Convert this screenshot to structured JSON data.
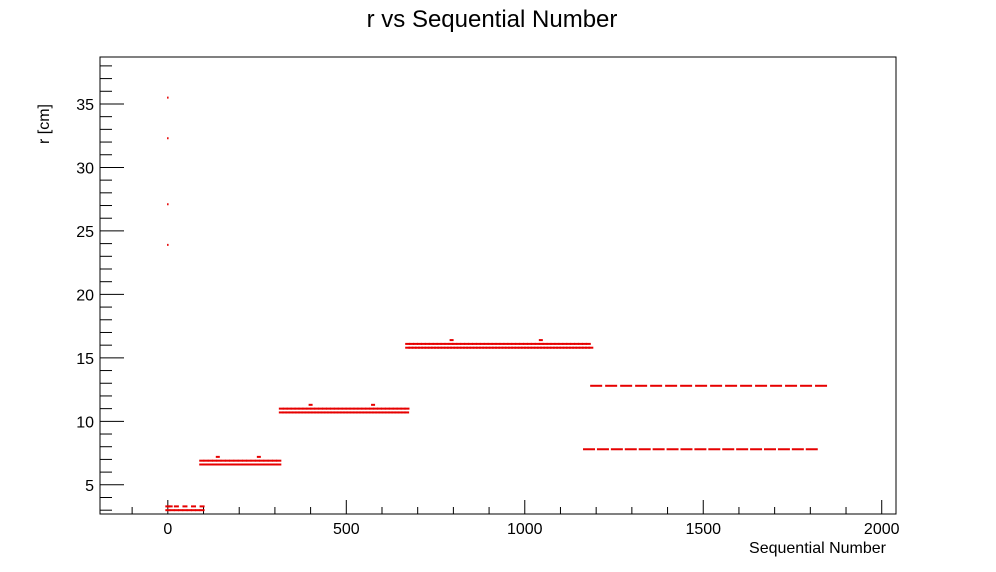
{
  "chart_data": {
    "type": "scatter",
    "title": "r vs Sequential Number",
    "xlabel": "Sequential Number",
    "ylabel": "r [cm]",
    "xlim": [
      -190,
      2040
    ],
    "ylim": [
      2.7,
      38.7
    ],
    "xticks": [
      0,
      500,
      1000,
      1500,
      2000
    ],
    "yticks": [
      5,
      10,
      15,
      20,
      25,
      30,
      35
    ],
    "grid": false,
    "marker_color": "#e60000",
    "series": [
      {
        "segments": [
          {
            "x_start": 0,
            "x_end": 100,
            "y": 3.0,
            "step": 12
          },
          {
            "x_start": 0,
            "x_end": 100,
            "y": 3.3,
            "step": 24
          },
          {
            "x_start": 95,
            "x_end": 318,
            "y": 6.6,
            "step": 9
          },
          {
            "x_start": 95,
            "x_end": 318,
            "y": 6.9,
            "step": 12
          },
          {
            "x_start": 318,
            "x_end": 672,
            "y": 10.7,
            "step": 9
          },
          {
            "x_start": 318,
            "x_end": 672,
            "y": 11.0,
            "step": 11
          },
          {
            "x_start": 672,
            "x_end": 1185,
            "y": 15.8,
            "step": 9
          },
          {
            "x_start": 672,
            "x_end": 1185,
            "y": 16.1,
            "step": 11
          },
          {
            "x_start": 1180,
            "x_end": 1822,
            "y": 7.8,
            "step": 39
          },
          {
            "x_start": 1200,
            "x_end": 1860,
            "y": 12.8,
            "step": 42
          }
        ],
        "points": [
          {
            "x": 0,
            "y": 35.5
          },
          {
            "x": 0,
            "y": 32.3
          },
          {
            "x": 0,
            "y": 27.1
          },
          {
            "x": 0,
            "y": 23.9
          },
          {
            "x": 8,
            "y": 3.3
          },
          {
            "x": 140,
            "y": 7.2
          },
          {
            "x": 255,
            "y": 7.2
          },
          {
            "x": 400,
            "y": 11.3
          },
          {
            "x": 575,
            "y": 11.3
          },
          {
            "x": 795,
            "y": 16.4
          },
          {
            "x": 1045,
            "y": 16.4
          }
        ]
      }
    ]
  }
}
